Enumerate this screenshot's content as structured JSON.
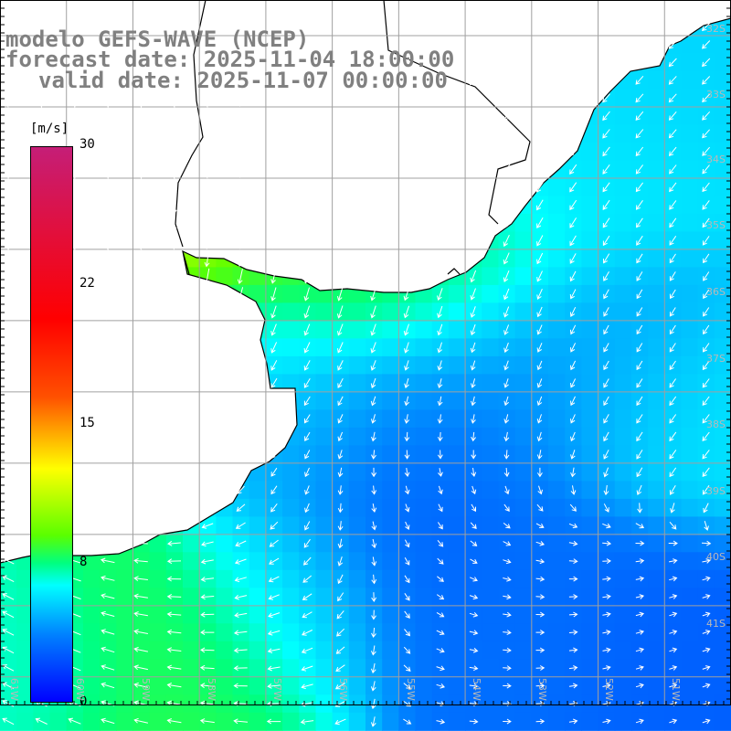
{
  "title": {
    "model": "modelo GEFS-WAVE (NCEP)",
    "forecast": "forecast date: 2025-11-04 18:00:00",
    "valid": "valid date: 2025-11-07 00:00:00"
  },
  "colorbar": {
    "unit": "[m/s]",
    "ticks": [
      {
        "label": "30",
        "value": 30
      },
      {
        "label": "22",
        "value": 22
      },
      {
        "label": "15",
        "value": 15
      },
      {
        "label": "8",
        "value": 8
      },
      {
        "label": "0",
        "value": 0
      }
    ],
    "colors": [
      "#c51e77",
      "#ff0000",
      "#ff5000",
      "#ffff00",
      "#5aff00",
      "#00ff80",
      "#00ffff",
      "#0080ff",
      "#0000ff"
    ]
  },
  "map": {
    "lon_range": [
      -61,
      -50
    ],
    "lat_range": [
      -41.4,
      -31.5
    ],
    "land_color": "#ffffff",
    "coast_color": "#000000",
    "grid_color": "#a0a0a0",
    "arrow_color": "#ffffff",
    "lat_labels": [
      "32S",
      "33S",
      "34S",
      "35S",
      "36S",
      "37S",
      "38S",
      "39S",
      "40S",
      "41S"
    ],
    "lon_labels": [
      "61W",
      "60W",
      "59W",
      "58W",
      "57W",
      "56W",
      "55W",
      "54W",
      "53W",
      "52W",
      "51W"
    ],
    "wind_regions": [
      {
        "lon": -58.6,
        "lat": -34.3,
        "speed": 13,
        "dir": 270,
        "r": 0.55
      },
      {
        "lon": -57.4,
        "lat": -34.9,
        "speed": 12,
        "dir": 262,
        "r": 0.6
      },
      {
        "lon": -56.0,
        "lat": -34.9,
        "speed": 10,
        "dir": 258,
        "r": 0.7
      },
      {
        "lon": -54.5,
        "lat": -35.3,
        "speed": 8.5,
        "dir": 250,
        "r": 0.9
      },
      {
        "lon": -52.5,
        "lat": -33.5,
        "speed": 6.5,
        "dir": 235,
        "r": 1.0
      },
      {
        "lon": -51.2,
        "lat": -32.3,
        "speed": 6,
        "dir": 225,
        "r": 0.9
      },
      {
        "lon": -52.0,
        "lat": -36.8,
        "speed": 5,
        "dir": 240,
        "r": 0.9
      },
      {
        "lon": -53.8,
        "lat": -37.2,
        "speed": 4,
        "dir": 255,
        "r": 0.9
      },
      {
        "lon": -55.0,
        "lat": -38.8,
        "speed": 3,
        "dir": 300,
        "r": 1.0
      },
      {
        "lon": -53.0,
        "lat": -39.8,
        "speed": 3.5,
        "dir": 0,
        "r": 0.9
      },
      {
        "lon": -51.0,
        "lat": -40.3,
        "speed": 3,
        "dir": 20,
        "r": 0.8
      },
      {
        "lon": -50.6,
        "lat": -37.5,
        "speed": 6.5,
        "dir": 230,
        "r": 0.8
      },
      {
        "lon": -58.5,
        "lat": -40.4,
        "speed": 9.5,
        "dir": 170,
        "r": 0.9
      },
      {
        "lon": -56.8,
        "lat": -39.7,
        "speed": 6.5,
        "dir": 200,
        "r": 0.8
      },
      {
        "lon": -60.5,
        "lat": -40.6,
        "speed": 7.5,
        "dir": 150,
        "r": 0.7
      },
      {
        "lon": -56.5,
        "lat": -37.5,
        "speed": 5.5,
        "dir": 225,
        "r": 0.8
      },
      {
        "lon": -57.0,
        "lat": -36.2,
        "speed": 7,
        "dir": 250,
        "r": 0.6
      }
    ]
  }
}
